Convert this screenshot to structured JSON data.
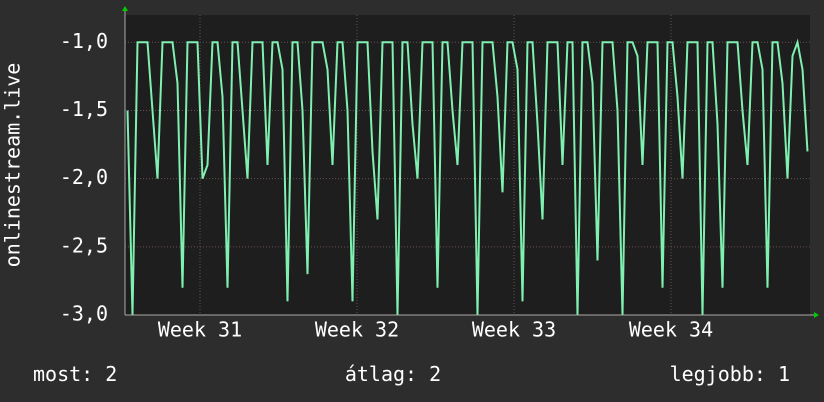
{
  "chart_data": {
    "type": "line",
    "y_label": "onlinestream.live",
    "series": [
      {
        "name": "onlinestream.live",
        "color": "#7ff0b0",
        "values": [
          -1.5,
          -3,
          -1,
          -1,
          -1,
          -1.5,
          -2,
          -1,
          -1,
          -1,
          -1.3,
          -2.8,
          -1,
          -1,
          -1,
          -2,
          -1.9,
          -1,
          -1,
          -1.4,
          -2.8,
          -1,
          -1,
          -1.5,
          -2,
          -1,
          -1,
          -1,
          -1.9,
          -1,
          -1,
          -1.2,
          -2.9,
          -1,
          -1,
          -1.5,
          -2.7,
          -1,
          -1,
          -1,
          -1.2,
          -1.9,
          -1,
          -1,
          -1.5,
          -2.9,
          -1,
          -1,
          -1,
          -1.8,
          -2.3,
          -1,
          -1,
          -1,
          -3,
          -1,
          -1,
          -1.6,
          -2,
          -1,
          -1,
          -1,
          -2.8,
          -1,
          -1,
          -1.5,
          -1.9,
          -1,
          -1,
          -1,
          -3,
          -1,
          -1,
          -1,
          -1.4,
          -2.1,
          -1,
          -1,
          -1.2,
          -2.9,
          -1,
          -1,
          -1.6,
          -2.3,
          -1,
          -1,
          -1,
          -1.9,
          -1,
          -1,
          -3,
          -1,
          -1,
          -1.3,
          -2.6,
          -1,
          -1,
          -1,
          -1.5,
          -3,
          -1,
          -1,
          -1.1,
          -1.9,
          -1,
          -1,
          -1,
          -2.8,
          -1,
          -1,
          -1.4,
          -2,
          -1,
          -1,
          -1,
          -3,
          -1,
          -1,
          -1.6,
          -2.8,
          -1,
          -1,
          -1,
          -1.5,
          -1.9,
          -1,
          -1,
          -1.2,
          -2.8,
          -1,
          -1,
          -1.3,
          -2,
          -1.1,
          -1,
          -1.2,
          -1.8
        ]
      }
    ],
    "xlim": [
      0,
      137
    ],
    "xticks": [
      {
        "value": 15,
        "label": "Week 31"
      },
      {
        "value": 46.4,
        "label": "Week 32"
      },
      {
        "value": 77.8,
        "label": "Week 33"
      },
      {
        "value": 109.2,
        "label": "Week 34"
      }
    ],
    "ylim": [
      -3,
      -0.8
    ],
    "yticks": [
      {
        "value": -3,
        "label": "-3,0"
      },
      {
        "value": -2.5,
        "label": "-2,5"
      },
      {
        "value": -2,
        "label": "-2,0"
      },
      {
        "value": -1.5,
        "label": "-1,5"
      },
      {
        "value": -1,
        "label": "-1,0"
      }
    ],
    "grid": true,
    "stats": [
      {
        "label": "most:",
        "value": 2
      },
      {
        "label": "átlag:",
        "value": 2
      },
      {
        "label": "legjobb:",
        "value": 1
      }
    ]
  }
}
